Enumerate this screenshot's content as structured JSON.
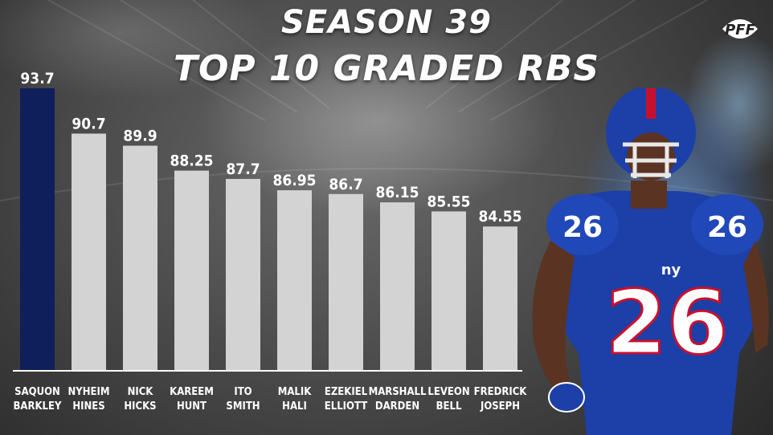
{
  "title": {
    "line1": "SEASON 39",
    "line2": "TOP 10 GRADED RBS"
  },
  "logo": {
    "text": "PFF"
  },
  "colors": {
    "highlight": "#0f1f5c",
    "bar": "#d3d3d3",
    "text": "#ffffff",
    "jersey": "#1c3fa8"
  },
  "chart_data": {
    "type": "bar",
    "title": "SEASON 39 TOP 10 GRADED RBS",
    "xlabel": "",
    "ylabel": "",
    "grid": false,
    "legend": "none",
    "ylim": [
      75,
      95
    ],
    "categories": [
      [
        "SAQUON",
        "BARKLEY"
      ],
      [
        "NYHEIM",
        "HINES"
      ],
      [
        "NICK",
        "HICKS"
      ],
      [
        "KAREEM",
        "HUNT"
      ],
      [
        "ITO",
        "SMITH"
      ],
      [
        "MALIK",
        "HALI"
      ],
      [
        "EZEKIEL",
        "ELLIOTT"
      ],
      [
        "MARSHALL",
        "DARDEN"
      ],
      [
        "LEVEON",
        "BELL"
      ],
      [
        "FREDRICK",
        "JOSEPH"
      ]
    ],
    "values": [
      93.7,
      90.7,
      89.9,
      88.25,
      87.7,
      86.95,
      86.7,
      86.15,
      85.55,
      84.55
    ],
    "highlight_index": 0
  }
}
